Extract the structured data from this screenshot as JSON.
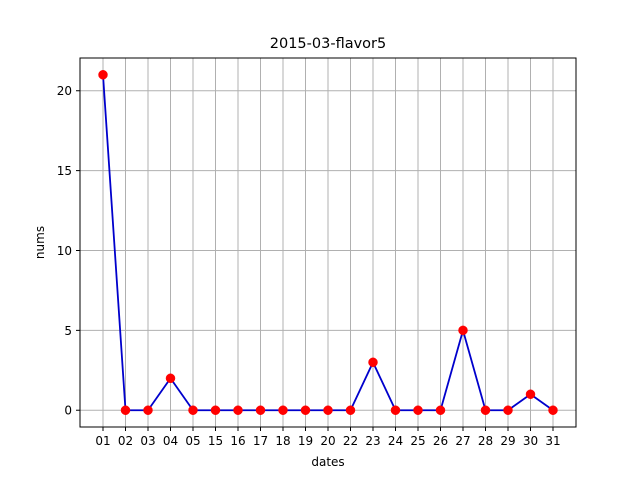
{
  "chart_data": {
    "type": "line",
    "title": "2015-03-flavor5",
    "xlabel": "dates",
    "ylabel": "nums",
    "categories": [
      "01",
      "02",
      "03",
      "04",
      "05",
      "15",
      "16",
      "17",
      "18",
      "19",
      "20",
      "22",
      "23",
      "24",
      "25",
      "26",
      "27",
      "28",
      "29",
      "30",
      "31"
    ],
    "series": [
      {
        "values": [
          21,
          0,
          0,
          2,
          0,
          0,
          0,
          0,
          0,
          0,
          0,
          0,
          3,
          0,
          0,
          0,
          5,
          0,
          0,
          1,
          0
        ],
        "line_color": "#0000cc",
        "marker_color": "#ff0000",
        "marker": "circle"
      }
    ],
    "ylim": [
      -1.05,
      22.05
    ],
    "yticks": [
      0,
      5,
      10,
      15,
      20
    ],
    "grid": true,
    "grid_color": "#b0b0b0"
  }
}
